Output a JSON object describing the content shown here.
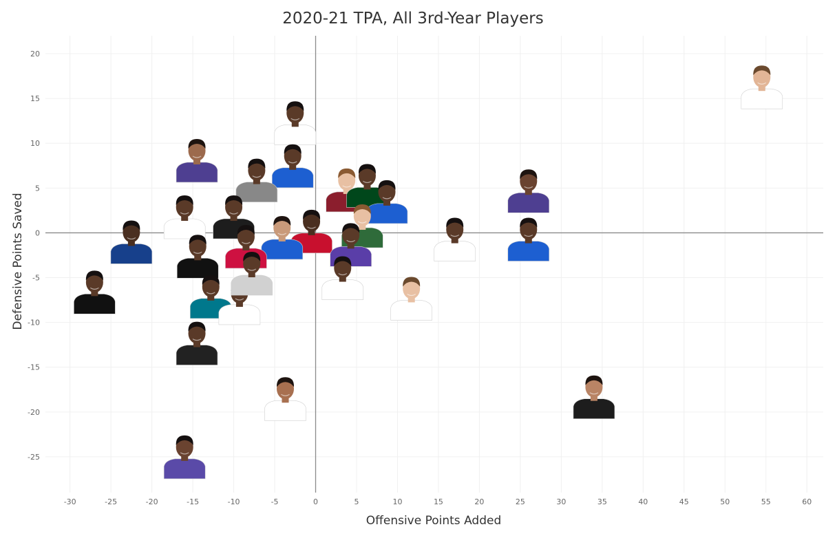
{
  "chart_data": {
    "type": "scatter",
    "title": "2020-21 TPA, All 3rd-Year Players",
    "xlabel": "Offensive Points Added",
    "ylabel": "Defensive Points Saved",
    "xlim": [
      -33,
      62
    ],
    "ylim": [
      -29,
      22
    ],
    "xticks": [
      -30,
      -25,
      -20,
      -15,
      -10,
      -5,
      0,
      5,
      10,
      15,
      20,
      25,
      30,
      35,
      40,
      45,
      50,
      55,
      60
    ],
    "yticks": [
      -25,
      -20,
      -15,
      -10,
      -5,
      0,
      5,
      10,
      15,
      20
    ],
    "grid": true,
    "legend": "none",
    "marker": "player-headshot",
    "points": [
      {
        "x": 54.5,
        "y": 16.3,
        "jersey": "#ffffff",
        "skin": "#e2b596",
        "hair": "#6b4a2e"
      },
      {
        "x": 26.0,
        "y": 4.7,
        "jersey": "#4e3f91",
        "skin": "#6a4330",
        "hair": "#1e1410"
      },
      {
        "x": 26.0,
        "y": -0.7,
        "jersey": "#1d5fd1",
        "skin": "#5a3a28",
        "hair": "#171110"
      },
      {
        "x": 17.0,
        "y": -0.7,
        "jersey": "#ffffff",
        "skin": "#5a3a28",
        "hair": "#151010"
      },
      {
        "x": 11.7,
        "y": -7.3,
        "jersey": "#ffffff",
        "skin": "#e8c0a3",
        "hair": "#6b4a2e"
      },
      {
        "x": 34.0,
        "y": -18.3,
        "jersey": "#1d1d1d",
        "skin": "#b98465",
        "hair": "#1e1410"
      },
      {
        "x": -3.7,
        "y": -18.5,
        "jersey": "#ffffff",
        "skin": "#a87050",
        "hair": "#1e1410"
      },
      {
        "x": -16.0,
        "y": -25.0,
        "jersey": "#5a4aa8",
        "skin": "#6a4330",
        "hair": "#151010"
      },
      {
        "x": -14.5,
        "y": -12.3,
        "jersey": "#222222",
        "skin": "#5a3a28",
        "hair": "#151010"
      },
      {
        "x": -27.0,
        "y": -6.6,
        "jersey": "#111111",
        "skin": "#5a3a28",
        "hair": "#151010"
      },
      {
        "x": -22.5,
        "y": -1.0,
        "jersey": "#17408b",
        "skin": "#4a2f20",
        "hair": "#151010"
      },
      {
        "x": -16.0,
        "y": 1.8,
        "jersey": "#ffffff",
        "skin": "#5a3a28",
        "hair": "#151010"
      },
      {
        "x": -14.5,
        "y": 8.1,
        "jersey": "#4e3f91",
        "skin": "#9c6a4d",
        "hair": "#1e1410"
      },
      {
        "x": -2.5,
        "y": 12.3,
        "jersey": "#ffffff",
        "skin": "#5a3a28",
        "hair": "#151010"
      },
      {
        "x": -2.8,
        "y": 7.5,
        "jersey": "#1d5fd1",
        "skin": "#5a3a28",
        "hair": "#151010"
      },
      {
        "x": -7.2,
        "y": 5.9,
        "jersey": "#888888",
        "skin": "#5a3a28",
        "hair": "#151010"
      },
      {
        "x": -10.0,
        "y": 1.8,
        "jersey": "#1d1d1d",
        "skin": "#5a3a28",
        "hair": "#151010"
      },
      {
        "x": 3.8,
        "y": 4.8,
        "jersey": "#8b1e2d",
        "skin": "#e8c0a3",
        "hair": "#8a5a32"
      },
      {
        "x": 6.3,
        "y": 5.3,
        "jersey": "#00471b",
        "skin": "#5a3a28",
        "hair": "#151010"
      },
      {
        "x": 8.7,
        "y": 3.5,
        "jersey": "#1d5fd1",
        "skin": "#5a3a28",
        "hair": "#151010"
      },
      {
        "x": 5.7,
        "y": 0.8,
        "jersey": "#2f6b3a",
        "skin": "#e8c0a3",
        "hair": "#8a5a32"
      },
      {
        "x": -0.5,
        "y": 0.2,
        "jersey": "#c8102e",
        "skin": "#4a2f20",
        "hair": "#151010"
      },
      {
        "x": -4.1,
        "y": -0.5,
        "jersey": "#1d5fd1",
        "skin": "#c99a7a",
        "hair": "#1e1410"
      },
      {
        "x": 4.3,
        "y": -1.3,
        "jersey": "#5a3ea8",
        "skin": "#5a3a28",
        "hair": "#151010"
      },
      {
        "x": 3.3,
        "y": -5.0,
        "jersey": "#ffffff",
        "skin": "#5a3a28",
        "hair": "#151010"
      },
      {
        "x": -8.5,
        "y": -1.5,
        "jersey": "#ce1141",
        "skin": "#5a3a28",
        "hair": "#151010"
      },
      {
        "x": -14.4,
        "y": -2.6,
        "jersey": "#111111",
        "skin": "#5a3a28",
        "hair": "#151010"
      },
      {
        "x": -12.8,
        "y": -7.1,
        "jersey": "#00788c",
        "skin": "#5a3a28",
        "hair": "#151010"
      },
      {
        "x": -9.3,
        "y": -7.8,
        "jersey": "#ffffff",
        "skin": "#5a3a28",
        "hair": "#151010"
      },
      {
        "x": -7.8,
        "y": -4.5,
        "jersey": "#d1d1d1",
        "skin": "#5a3a28",
        "hair": "#151010"
      }
    ]
  }
}
